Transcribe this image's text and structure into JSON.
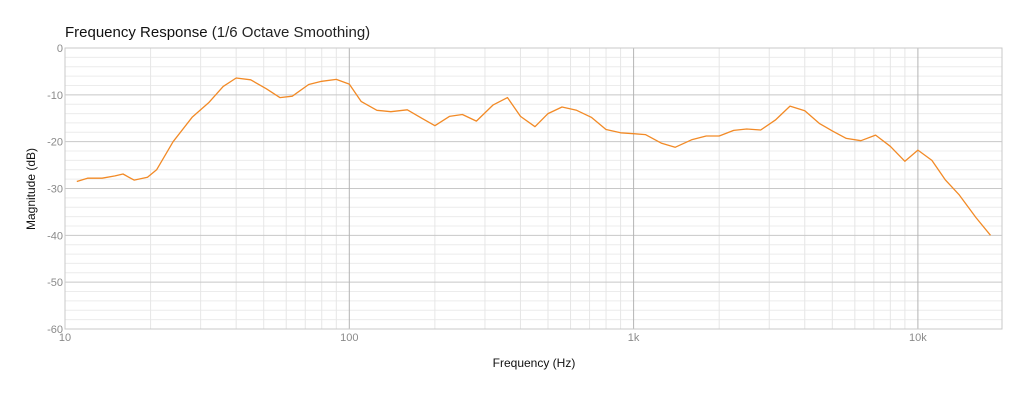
{
  "chart_data": {
    "type": "line",
    "title": "Frequency Response",
    "subtitle": "(1/6 Octave Smoothing)",
    "xlabel": "Frequency (Hz)",
    "ylabel": "Magnitude (dB)",
    "x_scale": "log",
    "xlim": [
      10,
      20000
    ],
    "ylim": [
      -60,
      0
    ],
    "grid": true,
    "x_ticks": [
      {
        "value": 10,
        "label": "10"
      },
      {
        "value": 100,
        "label": "100"
      },
      {
        "value": 1000,
        "label": "1k"
      },
      {
        "value": 10000,
        "label": "10k"
      }
    ],
    "y_ticks": [
      {
        "value": 0,
        "label": "0"
      },
      {
        "value": -10,
        "label": "-10"
      },
      {
        "value": -20,
        "label": "-20"
      },
      {
        "value": -30,
        "label": "-30"
      },
      {
        "value": -40,
        "label": "-40"
      },
      {
        "value": -50,
        "label": "-50"
      },
      {
        "value": -60,
        "label": "-60"
      }
    ],
    "series": [
      {
        "color": "#f28a26",
        "x": [
          11,
          12,
          13.5,
          15,
          16,
          17.5,
          19.5,
          21,
          24,
          28,
          32,
          36,
          40,
          45,
          51,
          57,
          63,
          72,
          80,
          90,
          100,
          110,
          125,
          140,
          160,
          180,
          200,
          225,
          250,
          280,
          320,
          360,
          400,
          450,
          500,
          560,
          630,
          710,
          800,
          900,
          1000,
          1100,
          1250,
          1400,
          1600,
          1800,
          2000,
          2250,
          2500,
          2800,
          3150,
          3550,
          4000,
          4500,
          5000,
          5600,
          6300,
          7100,
          8000,
          9000,
          10000,
          11200,
          12500,
          14000,
          16000,
          18000
        ],
        "y": [
          -28.5,
          -27.8,
          -27.8,
          -27.3,
          -26.9,
          -28.2,
          -27.6,
          -26,
          -20,
          -14.8,
          -11.7,
          -8.2,
          -6.4,
          -6.8,
          -8.7,
          -10.6,
          -10.3,
          -7.8,
          -7.1,
          -6.7,
          -7.7,
          -11.4,
          -13.3,
          -13.6,
          -13.2,
          -15,
          -16.6,
          -14.6,
          -14.2,
          -15.6,
          -12.2,
          -10.6,
          -14.6,
          -16.8,
          -14,
          -12.6,
          -13.3,
          -14.8,
          -17.4,
          -18.1,
          -18.3,
          -18.5,
          -20.3,
          -21.2,
          -19.6,
          -18.8,
          -18.8,
          -17.6,
          -17.3,
          -17.5,
          -15.4,
          -12.4,
          -13.4,
          -16.1,
          -17.7,
          -19.3,
          -19.8,
          -18.6,
          -21,
          -24.2,
          -21.8,
          -24,
          -28.2,
          -31.4,
          -36.2,
          -40
        ]
      }
    ]
  }
}
